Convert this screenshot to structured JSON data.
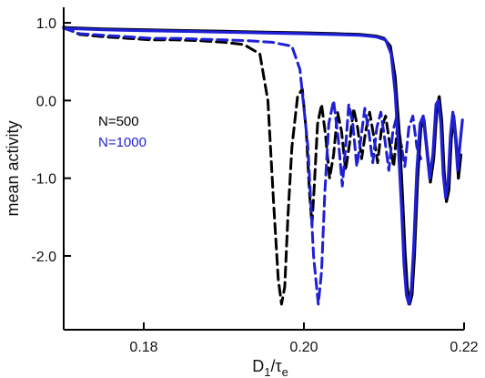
{
  "chart_data": {
    "type": "line",
    "title": "",
    "xlabel": "D1/τe",
    "xlabel_main": "D",
    "xlabel_sub1": "1",
    "xlabel_mid": "/τ",
    "xlabel_sub2": "e",
    "ylabel": "mean activity",
    "xlim": [
      0.17,
      0.22
    ],
    "ylim": [
      -2.95,
      1.2
    ],
    "xticks": [
      0.18,
      0.2,
      0.22
    ],
    "xtick_labels": [
      "0.18",
      "0.20",
      "0.22"
    ],
    "yticks": [
      1.0,
      0.0,
      -1.0,
      -2.0
    ],
    "ytick_labels": [
      "1.0",
      "0.0",
      "-1.0",
      "-2.0"
    ],
    "legend": [
      {
        "label": "N=500",
        "color": "#000000"
      },
      {
        "label": "N=1000",
        "color": "#1f1fd6"
      }
    ],
    "series": [
      {
        "name": "N=500",
        "color": "#000000",
        "style": "dashed",
        "x": [
          0.17,
          0.172,
          0.175,
          0.178,
          0.181,
          0.184,
          0.187,
          0.19,
          0.1925,
          0.1945,
          0.1955,
          0.1962,
          0.1968,
          0.1972,
          0.1976,
          0.198,
          0.1985,
          0.1992,
          0.1998,
          0.2003,
          0.2007,
          0.201,
          0.2013,
          0.2017,
          0.2022,
          0.2027,
          0.2032,
          0.2037,
          0.2042,
          0.2047,
          0.2052,
          0.2057,
          0.2062,
          0.2067,
          0.2072,
          0.2077,
          0.2082,
          0.2087,
          0.2092,
          0.2097,
          0.2102,
          0.2107,
          0.2112,
          0.2117,
          0.2122
        ],
        "y": [
          0.95,
          0.85,
          0.82,
          0.8,
          0.78,
          0.78,
          0.77,
          0.75,
          0.72,
          0.6,
          0.0,
          -1.3,
          -2.3,
          -2.62,
          -2.4,
          -1.5,
          -0.6,
          0.05,
          0.15,
          -0.4,
          -1.2,
          -1.6,
          -1.1,
          -0.3,
          -0.05,
          -0.45,
          -1.0,
          -0.7,
          -0.15,
          -0.4,
          -0.9,
          -0.55,
          -0.1,
          -0.35,
          -0.75,
          -0.4,
          -0.15,
          -0.45,
          -0.8,
          -0.35,
          -0.2,
          -0.55,
          -0.85,
          -0.3,
          -0.6
        ]
      },
      {
        "name": "N=1000",
        "color": "#1f1fd6",
        "style": "dashed",
        "x": [
          0.17,
          0.172,
          0.175,
          0.178,
          0.181,
          0.184,
          0.187,
          0.19,
          0.193,
          0.196,
          0.1985,
          0.1995,
          0.2005,
          0.2012,
          0.2018,
          0.2022,
          0.2026,
          0.2031,
          0.2037,
          0.2043,
          0.2048,
          0.2052,
          0.2056,
          0.2061,
          0.2066,
          0.2071,
          0.2076,
          0.2081,
          0.2086,
          0.2091,
          0.2096,
          0.2101,
          0.2106,
          0.2111,
          0.2116,
          0.2121,
          0.2126,
          0.2131,
          0.2136,
          0.2141,
          0.2146
        ],
        "y": [
          0.93,
          0.86,
          0.84,
          0.82,
          0.8,
          0.8,
          0.79,
          0.78,
          0.77,
          0.75,
          0.7,
          0.4,
          -0.6,
          -2.0,
          -2.62,
          -2.2,
          -1.2,
          -0.3,
          0.0,
          -0.5,
          -1.1,
          -0.6,
          -0.05,
          -0.3,
          -0.85,
          -0.5,
          -0.1,
          -0.4,
          -0.8,
          -0.35,
          -0.15,
          -0.5,
          -0.9,
          -0.4,
          -0.2,
          -0.55,
          -0.85,
          -0.35,
          -0.2,
          -0.6,
          -0.75
        ]
      },
      {
        "name": "N=500",
        "color": "#000000",
        "style": "solid",
        "x": [
          0.17,
          0.175,
          0.18,
          0.185,
          0.19,
          0.195,
          0.2,
          0.204,
          0.207,
          0.209,
          0.21,
          0.2108,
          0.2114,
          0.2119,
          0.2123,
          0.2126,
          0.2129,
          0.2132,
          0.2135,
          0.2138,
          0.2142,
          0.2146,
          0.215,
          0.2154,
          0.2158,
          0.2162,
          0.2166,
          0.2169,
          0.2172,
          0.2175,
          0.2178,
          0.2181,
          0.2184,
          0.2187,
          0.219,
          0.2193,
          0.2196
        ],
        "y": [
          0.94,
          0.92,
          0.91,
          0.9,
          0.89,
          0.88,
          0.87,
          0.86,
          0.85,
          0.83,
          0.8,
          0.7,
          0.3,
          -0.4,
          -1.2,
          -1.9,
          -2.4,
          -2.62,
          -2.5,
          -2.0,
          -1.0,
          -0.35,
          -0.25,
          -0.65,
          -1.05,
          -0.75,
          -0.1,
          0.05,
          -0.25,
          -0.9,
          -1.3,
          -1.15,
          -0.5,
          -0.2,
          -0.5,
          -1.0,
          -0.7
        ]
      },
      {
        "name": "N=1000",
        "color": "#1f1fd6",
        "style": "solid",
        "x": [
          0.17,
          0.175,
          0.18,
          0.185,
          0.19,
          0.195,
          0.2,
          0.204,
          0.207,
          0.209,
          0.2102,
          0.2109,
          0.2114,
          0.2118,
          0.2122,
          0.2125,
          0.2128,
          0.2131,
          0.2134,
          0.2137,
          0.2141,
          0.2145,
          0.2149,
          0.2153,
          0.2157,
          0.2161,
          0.2165,
          0.2168,
          0.2171,
          0.2174,
          0.2177,
          0.218,
          0.2183,
          0.2186,
          0.2189,
          0.2192,
          0.2195,
          0.2198
        ],
        "y": [
          0.93,
          0.91,
          0.9,
          0.89,
          0.88,
          0.87,
          0.86,
          0.85,
          0.84,
          0.82,
          0.78,
          0.6,
          0.1,
          -0.6,
          -1.4,
          -2.1,
          -2.5,
          -2.62,
          -2.45,
          -1.9,
          -0.9,
          -0.3,
          -0.2,
          -0.6,
          -1.0,
          -0.7,
          -0.05,
          0.0,
          -0.3,
          -0.95,
          -1.25,
          -1.05,
          -0.45,
          -0.15,
          -0.45,
          -0.9,
          -0.55,
          -0.25
        ]
      }
    ],
    "grid": false,
    "legend_placement": "left"
  }
}
